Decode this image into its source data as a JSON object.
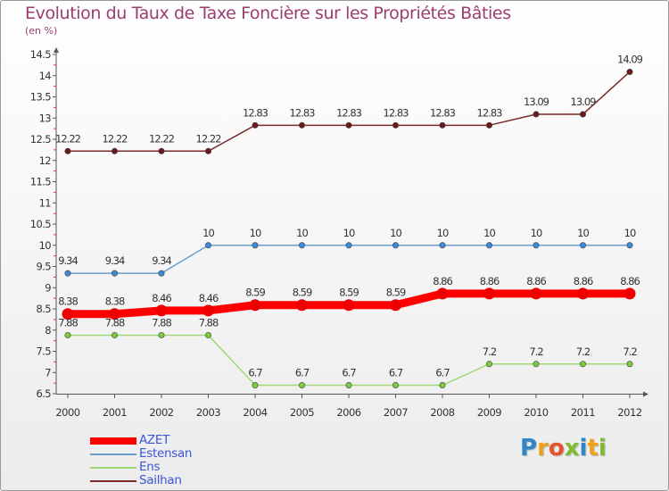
{
  "title": "Evolution du Taux de Taxe Foncière sur les Propriétés Bâties",
  "unit": "(en %)",
  "logo": {
    "text": "Proxiti",
    "letters": [
      {
        "ch": "P",
        "color": "#2f86c9"
      },
      {
        "ch": "r",
        "color": "#f0a11c"
      },
      {
        "ch": "o",
        "color": "#e8532d"
      },
      {
        "ch": "x",
        "color": "#7fbc2e"
      },
      {
        "ch": "i",
        "color": "#2f86c9"
      },
      {
        "ch": "t",
        "color": "#f0a11c"
      },
      {
        "ch": "i",
        "color": "#7fbc2e"
      }
    ]
  },
  "chart_data": {
    "type": "line",
    "title": "Evolution du Taux de Taxe Foncière sur les Propriétés Bâties",
    "ylabel": "(en %)",
    "xlabel": "",
    "ylim": [
      6.5,
      14.5
    ],
    "yticks": [
      "6.5",
      "7",
      "7.5",
      "8",
      "8.5",
      "9",
      "9.5",
      "10",
      "10.5",
      "11",
      "11.5",
      "12",
      "12.5",
      "13",
      "13.5",
      "14",
      "14.5"
    ],
    "ytick_values": [
      6.5,
      7,
      7.5,
      8,
      8.5,
      9,
      9.5,
      10,
      10.5,
      11,
      11.5,
      12,
      12.5,
      13,
      13.5,
      14,
      14.5
    ],
    "categories": [
      "2000",
      "2001",
      "2002",
      "2003",
      "2004",
      "2005",
      "2006",
      "2007",
      "2008",
      "2009",
      "2010",
      "2011",
      "2012"
    ],
    "grid": false,
    "legend_position": "bottom-left",
    "series": [
      {
        "name": "Sailhan",
        "color": "#7b2a2a",
        "marker": "#6a1a1a",
        "width": "thin",
        "values": [
          12.22,
          12.22,
          12.22,
          12.22,
          12.83,
          12.83,
          12.83,
          12.83,
          12.83,
          12.83,
          13.09,
          13.09,
          14.09
        ],
        "labels": [
          "12.22",
          "12.22",
          "12.22",
          "12.22",
          "12.83",
          "12.83",
          "12.83",
          "12.83",
          "12.83",
          "12.83",
          "13.09",
          "13.09",
          "14.09"
        ]
      },
      {
        "name": "Estensan",
        "color": "#6b9ccd",
        "marker": "#3d8ad8",
        "width": "thin",
        "values": [
          9.34,
          9.34,
          9.34,
          10,
          10,
          10,
          10,
          10,
          10,
          10,
          10,
          10,
          10
        ],
        "labels": [
          "9.34",
          "9.34",
          "9.34",
          "10",
          "10",
          "10",
          "10",
          "10",
          "10",
          "10",
          "10",
          "10",
          "10"
        ]
      },
      {
        "name": "AZET",
        "color": "#ff0000",
        "marker": "#ee0000",
        "width": "thick",
        "values": [
          8.38,
          8.38,
          8.46,
          8.46,
          8.59,
          8.59,
          8.59,
          8.59,
          8.86,
          8.86,
          8.86,
          8.86,
          8.86
        ],
        "labels": [
          "8.38",
          "8.38",
          "8.46",
          "8.46",
          "8.59",
          "8.59",
          "8.59",
          "8.59",
          "8.86",
          "8.86",
          "8.86",
          "8.86",
          "8.86"
        ]
      },
      {
        "name": "Ens",
        "color": "#a0d878",
        "marker": "#7ccb3e",
        "width": "thin",
        "values": [
          7.88,
          7.88,
          7.88,
          7.88,
          6.7,
          6.7,
          6.7,
          6.7,
          6.7,
          7.2,
          7.2,
          7.2,
          7.2
        ],
        "labels": [
          "7.88",
          "7.88",
          "7.88",
          "7.88",
          "6.7",
          "6.7",
          "6.7",
          "6.7",
          "6.7",
          "7.2",
          "7.2",
          "7.2",
          "7.2"
        ]
      }
    ],
    "legend": [
      "AZET",
      "Estensan",
      "Ens",
      "Sailhan"
    ]
  }
}
